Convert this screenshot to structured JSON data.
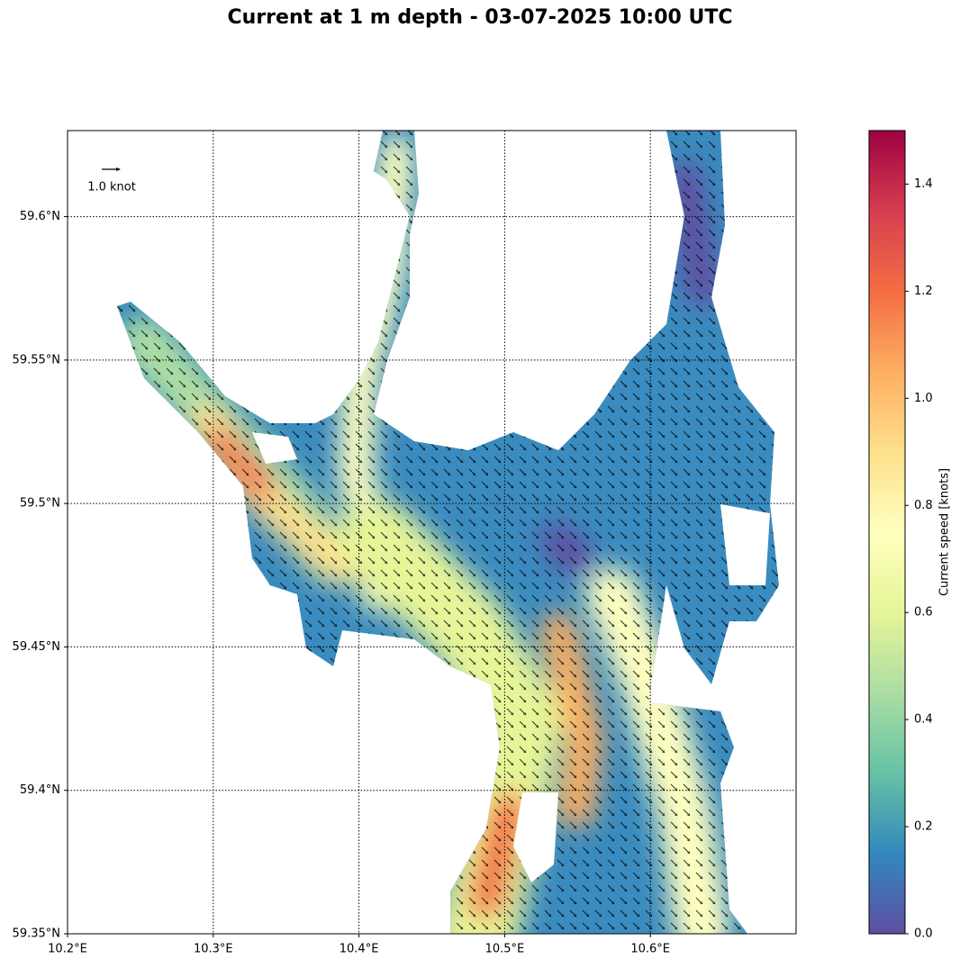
{
  "chart_data": {
    "type": "quiver-map",
    "title": "Current at 1 m depth - 03-07-2025 10:00 UTC",
    "xlim": [
      10.2,
      10.7
    ],
    "ylim": [
      59.35,
      59.63
    ],
    "xticks": [
      {
        "value": 10.2,
        "label": "10.2°E"
      },
      {
        "value": 10.3,
        "label": "10.3°E"
      },
      {
        "value": 10.4,
        "label": "10.4°E"
      },
      {
        "value": 10.5,
        "label": "10.5°E"
      },
      {
        "value": 10.6,
        "label": "10.6°E"
      }
    ],
    "yticks": [
      {
        "value": 59.35,
        "label": "59.35°N"
      },
      {
        "value": 59.4,
        "label": "59.4°N"
      },
      {
        "value": 59.45,
        "label": "59.45°N"
      },
      {
        "value": 59.5,
        "label": "59.5°N"
      },
      {
        "value": 59.55,
        "label": "59.55°N"
      },
      {
        "value": 59.6,
        "label": "59.6°N"
      }
    ],
    "grid": true,
    "reference_arrow_label": "1.0 knot",
    "colorbar": {
      "label": "Current speed [knots]",
      "lim": [
        0,
        1.5
      ],
      "ticks": [
        {
          "value": 0,
          "label": "0.0"
        },
        0.2,
        0.4,
        0.6,
        0.8,
        {
          "value": 1,
          "label": "1.0"
        },
        1.2,
        1.4
      ]
    }
  }
}
